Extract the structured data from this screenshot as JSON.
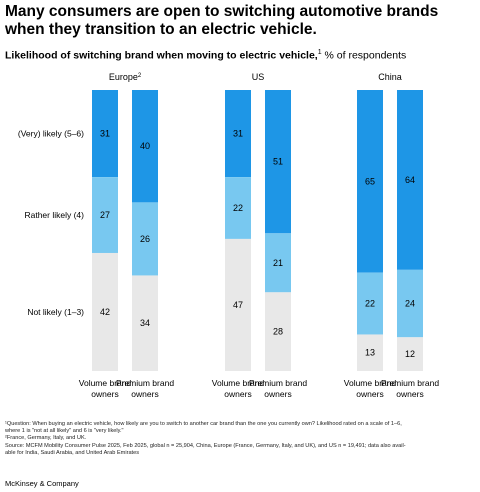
{
  "title": "Many consumers are open to switching automotive brands when they transition to an electric vehicle.",
  "subtitle": {
    "bold": "Likelihood of switching brand when moving to electric vehicle,",
    "sup": "1",
    "rest": " % of respondents"
  },
  "footnotes": [
    "¹Question: When buying an electric vehicle, how likely are you to switch to another car brand than the one you currently own? Likelihood rated on a scale of 1–6,",
    "  where 1 is \"not at all likely\" and 6 is \"very likely.\"",
    "²France, Germany, Italy, and UK.",
    "Source: MCFM Mobility Consumer Pulse 2025, Feb 2025, global n = 25,904, China, Europe (France, Germany, Italy, and UK), and US n = 19,491; data also avail-",
    "able for India, Saudi Arabia, and United Arab Emirates"
  ],
  "brand": "McKinsey & Company",
  "colors": {
    "very_likely": "#1e96e6",
    "rather_likely": "#78c8f0",
    "not_likely": "#e8e8e8"
  },
  "chart_data": {
    "type": "bar",
    "stacked": true,
    "normalized": true,
    "groups": [
      {
        "name": "Europe",
        "sup": "2"
      },
      {
        "name": "US",
        "sup": ""
      },
      {
        "name": "China",
        "sup": ""
      }
    ],
    "categories": [
      "Volume brand owners",
      "Premium brand owners"
    ],
    "series": [
      {
        "name": "(Very) likely (5–6)",
        "values": [
          [
            31,
            40
          ],
          [
            31,
            51
          ],
          [
            65,
            64
          ]
        ]
      },
      {
        "name": "Rather likely (4)",
        "values": [
          [
            27,
            26
          ],
          [
            22,
            21
          ],
          [
            22,
            24
          ]
        ]
      },
      {
        "name": "Not likely (1–3)",
        "values": [
          [
            42,
            34
          ],
          [
            47,
            28
          ],
          [
            13,
            12
          ]
        ]
      }
    ]
  }
}
